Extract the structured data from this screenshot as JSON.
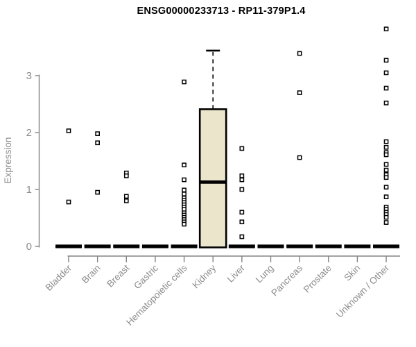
{
  "chart_data": {
    "type": "box",
    "title": "ENSG00000233713 - RP11-379P1.4",
    "xlabel": "",
    "ylabel": "Expression",
    "yticks": [
      0,
      1,
      2,
      3
    ],
    "ylim": [
      0,
      3.9
    ],
    "grid": false,
    "legend": "none",
    "point_marker": "open-square",
    "categories": [
      "Bladder",
      "Brain",
      "Breast",
      "Gastric",
      "Hematopoietic cells",
      "Kidney",
      "Liver",
      "Lung",
      "Pancreas",
      "Prostate",
      "Skin",
      "Unknown / Other"
    ],
    "series": [
      {
        "name": "Bladder",
        "zero_bar": true,
        "outliers": [
          2.03,
          0.78
        ]
      },
      {
        "name": "Brain",
        "zero_bar": true,
        "outliers": [
          1.98,
          1.82,
          0.95
        ]
      },
      {
        "name": "Breast",
        "zero_bar": true,
        "outliers": [
          1.29,
          1.24,
          0.88,
          0.8
        ]
      },
      {
        "name": "Gastric",
        "zero_bar": true,
        "outliers": []
      },
      {
        "name": "Hematopoietic cells",
        "zero_bar": true,
        "outliers": [
          2.89,
          1.43,
          1.17,
          0.99,
          0.92,
          0.85,
          0.81,
          0.77,
          0.73,
          0.69,
          0.65,
          0.59,
          0.55,
          0.51,
          0.47,
          0.43,
          0.39
        ]
      },
      {
        "name": "Kidney",
        "zero_bar": false,
        "outliers": [],
        "box": {
          "q1": 0,
          "median": 1.13,
          "q3": 2.41,
          "whisker_low": 0,
          "whisker_high": 3.44
        }
      },
      {
        "name": "Liver",
        "zero_bar": true,
        "outliers": [
          1.72,
          1.24,
          1.17,
          1.0,
          0.6,
          0.43,
          0.17
        ]
      },
      {
        "name": "Lung",
        "zero_bar": true,
        "outliers": []
      },
      {
        "name": "Pancreas",
        "zero_bar": true,
        "outliers": [
          3.39,
          2.7,
          1.56
        ]
      },
      {
        "name": "Prostate",
        "zero_bar": true,
        "outliers": []
      },
      {
        "name": "Skin",
        "zero_bar": true,
        "outliers": []
      },
      {
        "name": "Unknown / Other",
        "zero_bar": true,
        "outliers": [
          3.82,
          3.27,
          3.05,
          2.78,
          2.52,
          1.84,
          1.74,
          1.65,
          1.61,
          1.44,
          1.34,
          1.26,
          1.21,
          1.04,
          0.87,
          0.69,
          0.65,
          0.6,
          0.56,
          0.51,
          0.42
        ]
      }
    ],
    "colors": {
      "box_fill": "#EBE5CB",
      "box_stroke": "#000000",
      "median": "#000000",
      "whisker": "#000000",
      "zero_bar": "#000000",
      "point_stroke": "#000000",
      "point_fill": "#ffffff",
      "axis_line": "#848484",
      "tick_text": "#8c8c8c",
      "title_text": "#000000",
      "background": "#ffffff"
    }
  }
}
